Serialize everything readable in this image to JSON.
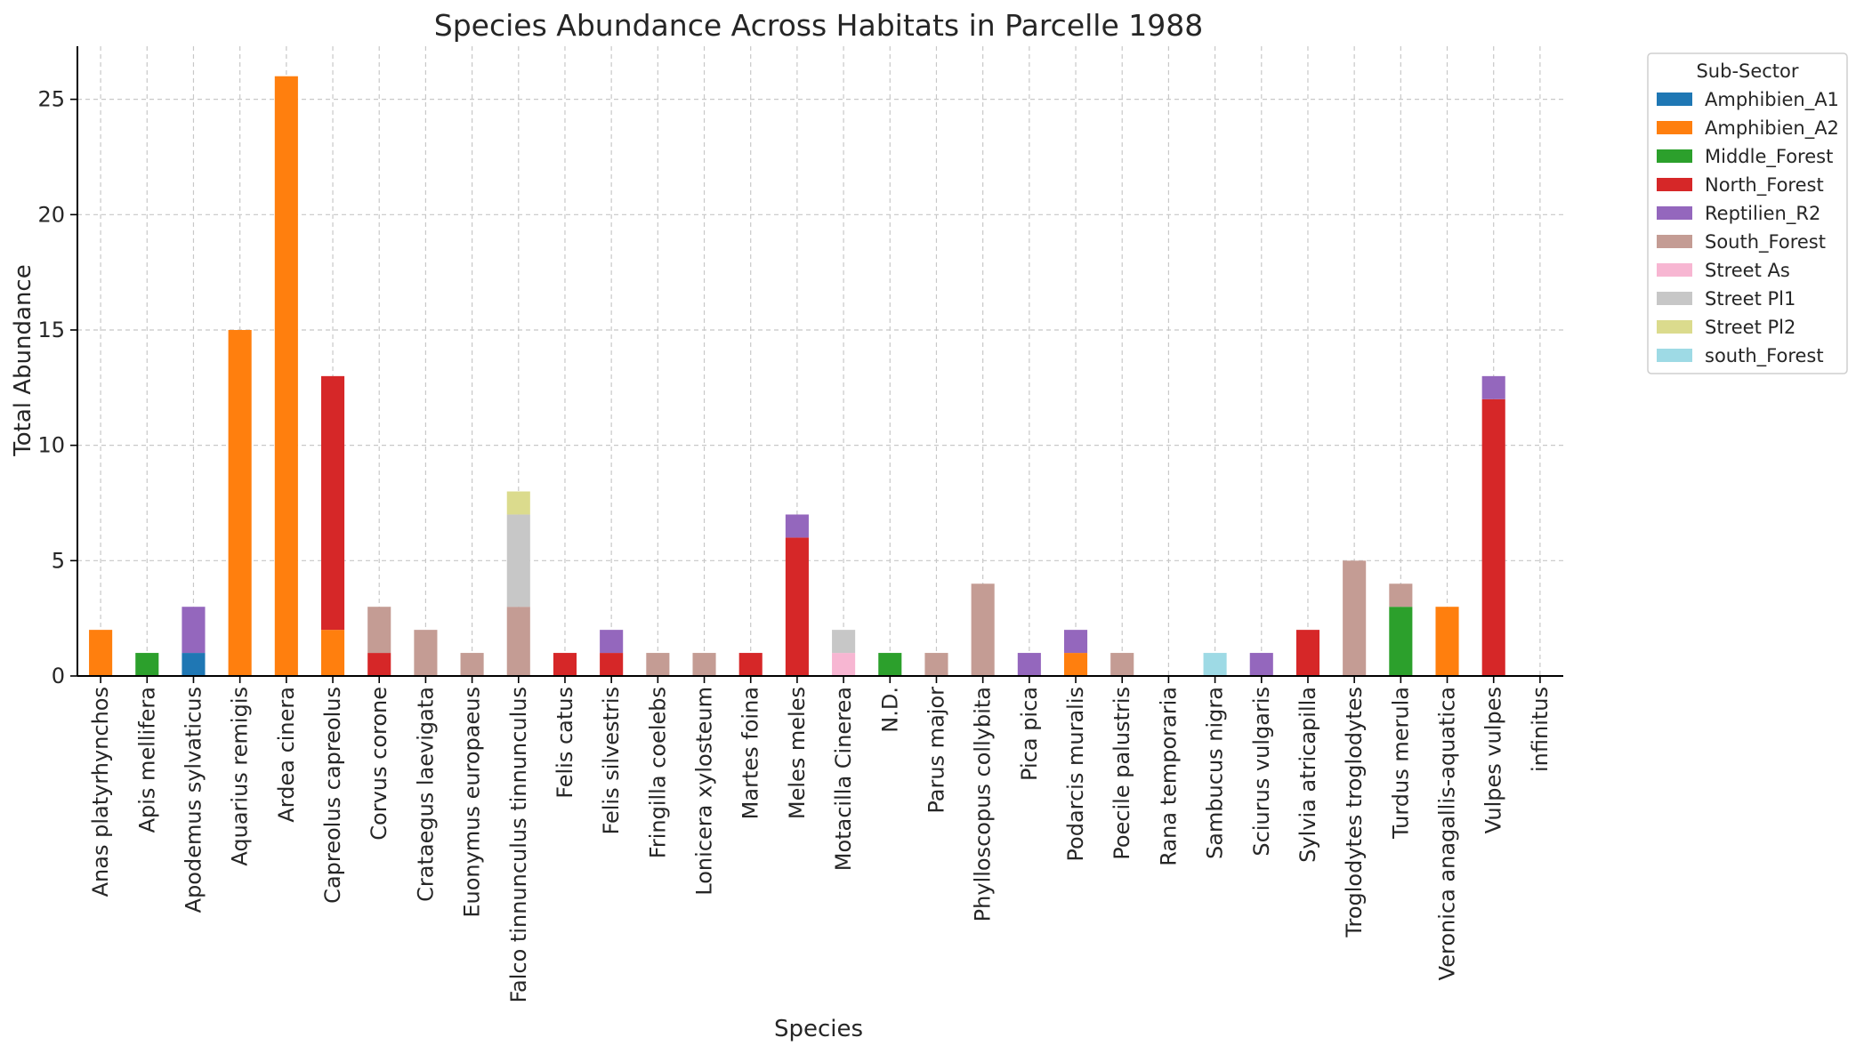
{
  "chart_data": {
    "type": "bar",
    "stacked": true,
    "title": "Species Abundance Across Habitats in Parcelle 1988",
    "xlabel": "Species",
    "ylabel": "Total Abundance",
    "ylim": [
      0,
      27.3
    ],
    "yticks": [
      0,
      5,
      10,
      15,
      20,
      25
    ],
    "grid": true,
    "legend_title": "Sub-Sector",
    "legend_position": "outside-top-right",
    "categories": [
      "Anas platyrhynchos",
      "Apis mellifera",
      "Apodemus sylvaticus",
      "Aquarius remigis",
      "Ardea cinera",
      "Capreolus capreolus",
      "Corvus corone",
      "Crataegus laevigata",
      "Euonymus europaeus",
      "Falco tinnunculus tinnunculus",
      "Felis catus",
      "Felis silvestris",
      "Fringilla coelebs",
      "Lonicera xylosteum",
      "Martes foina",
      "Meles meles",
      "Motacilla Cinerea",
      "N.D.",
      "Parus major",
      "Phylloscopus collybita",
      "Pica pica",
      "Podarcis muralis",
      "Poecile palustris",
      "Rana temporaria",
      "Sambucus nigra",
      "Sciurus vulgaris",
      "Sylvia atricapilla",
      "Troglodytes troglodytes",
      "Turdus merula",
      "Veronica anagallis-aquatica",
      "Vulpes vulpes",
      "infinitus"
    ],
    "series": [
      {
        "name": "Amphibien_A1",
        "color": "#1f77b4",
        "values": [
          0,
          0,
          1,
          0,
          0,
          0,
          0,
          0,
          0,
          0,
          0,
          0,
          0,
          0,
          0,
          0,
          0,
          0,
          0,
          0,
          0,
          0,
          0,
          0,
          0,
          0,
          0,
          0,
          0,
          0,
          0,
          0
        ]
      },
      {
        "name": "Amphibien_A2",
        "color": "#ff7f0e",
        "values": [
          2,
          0,
          0,
          15,
          26,
          2,
          0,
          0,
          0,
          0,
          0,
          0,
          0,
          0,
          0,
          0,
          0,
          0,
          0,
          0,
          0,
          1,
          0,
          0,
          0,
          0,
          0,
          0,
          0,
          3,
          0,
          0
        ]
      },
      {
        "name": "Middle_Forest",
        "color": "#2ca02c",
        "values": [
          0,
          1,
          0,
          0,
          0,
          0,
          0,
          0,
          0,
          0,
          0,
          0,
          0,
          0,
          0,
          0,
          0,
          1,
          0,
          0,
          0,
          0,
          0,
          0,
          0,
          0,
          0,
          0,
          3,
          0,
          0,
          0
        ]
      },
      {
        "name": "North_Forest",
        "color": "#d62728",
        "values": [
          0,
          0,
          0,
          0,
          0,
          11,
          1,
          0,
          0,
          0,
          1,
          1,
          0,
          0,
          1,
          6,
          0,
          0,
          0,
          0,
          0,
          0,
          0,
          0,
          0,
          0,
          2,
          0,
          0,
          0,
          12,
          0
        ]
      },
      {
        "name": "Reptilien_R2",
        "color": "#9467bd",
        "values": [
          0,
          0,
          2,
          0,
          0,
          0,
          0,
          0,
          0,
          0,
          0,
          1,
          0,
          0,
          0,
          1,
          0,
          0,
          0,
          0,
          1,
          1,
          0,
          0,
          0,
          1,
          0,
          0,
          0,
          0,
          1,
          0
        ]
      },
      {
        "name": "South_Forest",
        "color": "#c49c94",
        "values": [
          0,
          0,
          0,
          0,
          0,
          0,
          2,
          2,
          1,
          3,
          0,
          0,
          1,
          1,
          0,
          0,
          0,
          0,
          1,
          4,
          0,
          0,
          1,
          0,
          0,
          0,
          0,
          5,
          1,
          0,
          0,
          0
        ]
      },
      {
        "name": "Street As",
        "color": "#f7b6d2",
        "values": [
          0,
          0,
          0,
          0,
          0,
          0,
          0,
          0,
          0,
          0,
          0,
          0,
          0,
          0,
          0,
          0,
          1,
          0,
          0,
          0,
          0,
          0,
          0,
          0,
          0,
          0,
          0,
          0,
          0,
          0,
          0,
          0
        ]
      },
      {
        "name": "Street Pl1",
        "color": "#c7c7c7",
        "values": [
          0,
          0,
          0,
          0,
          0,
          0,
          0,
          0,
          0,
          4,
          0,
          0,
          0,
          0,
          0,
          0,
          1,
          0,
          0,
          0,
          0,
          0,
          0,
          0,
          0,
          0,
          0,
          0,
          0,
          0,
          0,
          0
        ]
      },
      {
        "name": "Street Pl2",
        "color": "#dbdb8d",
        "values": [
          0,
          0,
          0,
          0,
          0,
          0,
          0,
          0,
          0,
          1,
          0,
          0,
          0,
          0,
          0,
          0,
          0,
          0,
          0,
          0,
          0,
          0,
          0,
          0,
          0,
          0,
          0,
          0,
          0,
          0,
          0,
          0
        ]
      },
      {
        "name": "south_Forest",
        "color": "#9edae5",
        "values": [
          0,
          0,
          0,
          0,
          0,
          0,
          0,
          0,
          0,
          0,
          0,
          0,
          0,
          0,
          0,
          0,
          0,
          0,
          0,
          0,
          0,
          0,
          0,
          0,
          1,
          0,
          0,
          0,
          0,
          0,
          0,
          0
        ]
      }
    ]
  }
}
